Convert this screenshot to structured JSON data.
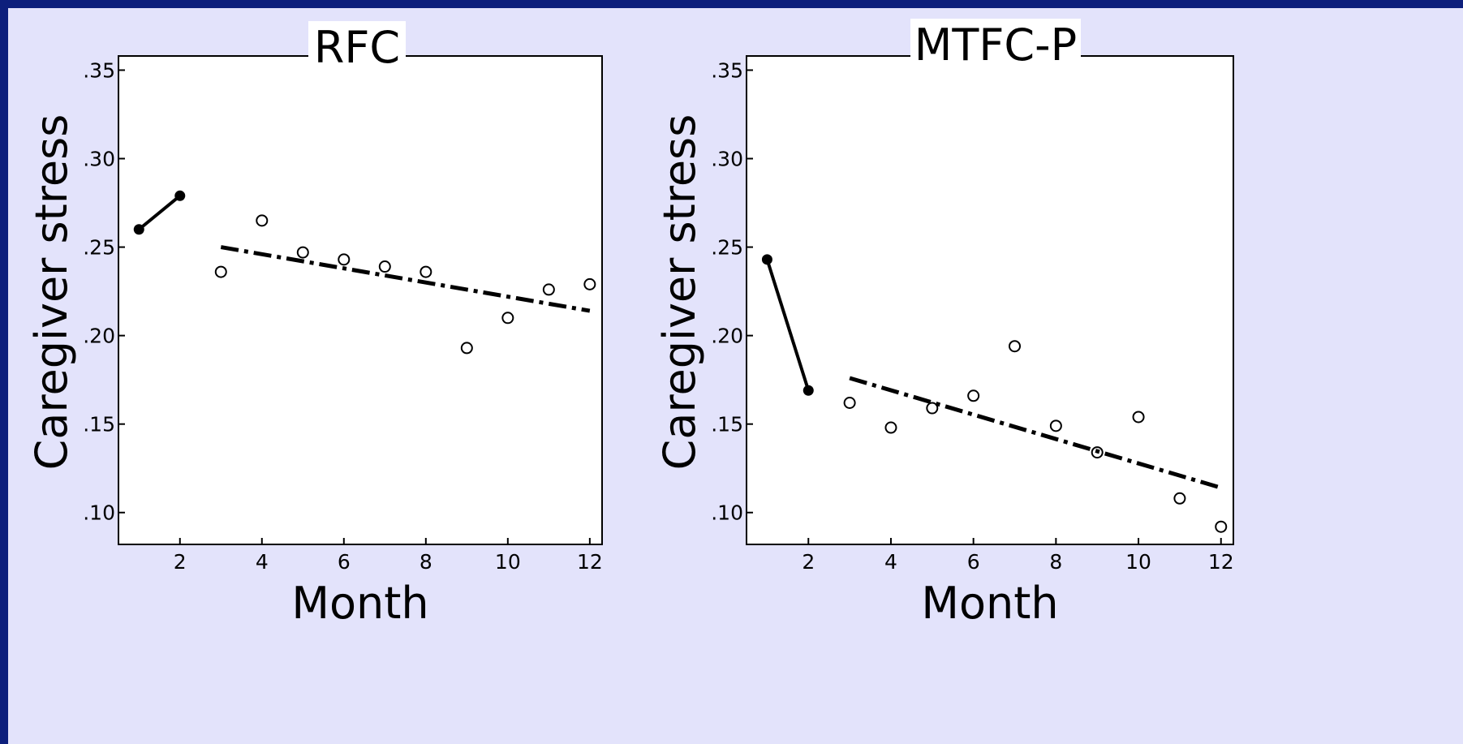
{
  "theme": {
    "frame_color": "#0d1f7c",
    "background_color": "#e3e3fb",
    "plot_color": "#ffffff",
    "ink_color": "#000000"
  },
  "chart_data": [
    {
      "type": "scatter",
      "title": "RFC",
      "xlabel": "Month",
      "ylabel": "Caregiver stress",
      "xlim": [
        0.5,
        12.3
      ],
      "ylim": [
        0.082,
        0.358
      ],
      "x_ticks": [
        2,
        4,
        6,
        8,
        10,
        12
      ],
      "x_tick_labels": [
        "2",
        "4",
        "6",
        "8",
        "10",
        "12"
      ],
      "y_ticks": [
        0.1,
        0.15,
        0.2,
        0.25,
        0.3,
        0.35
      ],
      "y_tick_labels": [
        ".10",
        ".15",
        ".20",
        ".25",
        ".30",
        ".35"
      ],
      "grid": false,
      "series": [
        {
          "style": "filled-markers-solid-line",
          "x": [
            1,
            2
          ],
          "y": [
            0.26,
            0.279
          ]
        },
        {
          "style": "open-markers",
          "x": [
            3,
            4,
            5,
            6,
            7,
            8,
            9,
            10,
            11,
            12
          ],
          "y": [
            0.236,
            0.265,
            0.247,
            0.243,
            0.239,
            0.236,
            0.193,
            0.21,
            0.226,
            0.229
          ]
        },
        {
          "style": "dash-dot-trend-line",
          "x": [
            3,
            12
          ],
          "y": [
            0.25,
            0.214
          ]
        }
      ]
    },
    {
      "type": "scatter",
      "title": "MTFC-P",
      "xlabel": "Month",
      "ylabel": "Caregiver stress",
      "xlim": [
        0.5,
        12.3
      ],
      "ylim": [
        0.082,
        0.358
      ],
      "x_ticks": [
        2,
        4,
        6,
        8,
        10,
        12
      ],
      "x_tick_labels": [
        "2",
        "4",
        "6",
        "8",
        "10",
        "12"
      ],
      "y_ticks": [
        0.1,
        0.15,
        0.2,
        0.25,
        0.3,
        0.35
      ],
      "y_tick_labels": [
        ".10",
        ".15",
        ".20",
        ".25",
        ".30",
        ".35"
      ],
      "grid": false,
      "series": [
        {
          "style": "filled-markers-solid-line",
          "x": [
            1,
            2
          ],
          "y": [
            0.243,
            0.169
          ]
        },
        {
          "style": "open-markers",
          "x": [
            3,
            4,
            5,
            6,
            7,
            8,
            9,
            10,
            11,
            12
          ],
          "y": [
            0.162,
            0.148,
            0.159,
            0.166,
            0.194,
            0.149,
            0.134,
            0.154,
            0.108,
            0.092
          ]
        },
        {
          "style": "dash-dot-trend-line",
          "x": [
            3,
            12
          ],
          "y": [
            0.176,
            0.114
          ]
        }
      ]
    }
  ]
}
